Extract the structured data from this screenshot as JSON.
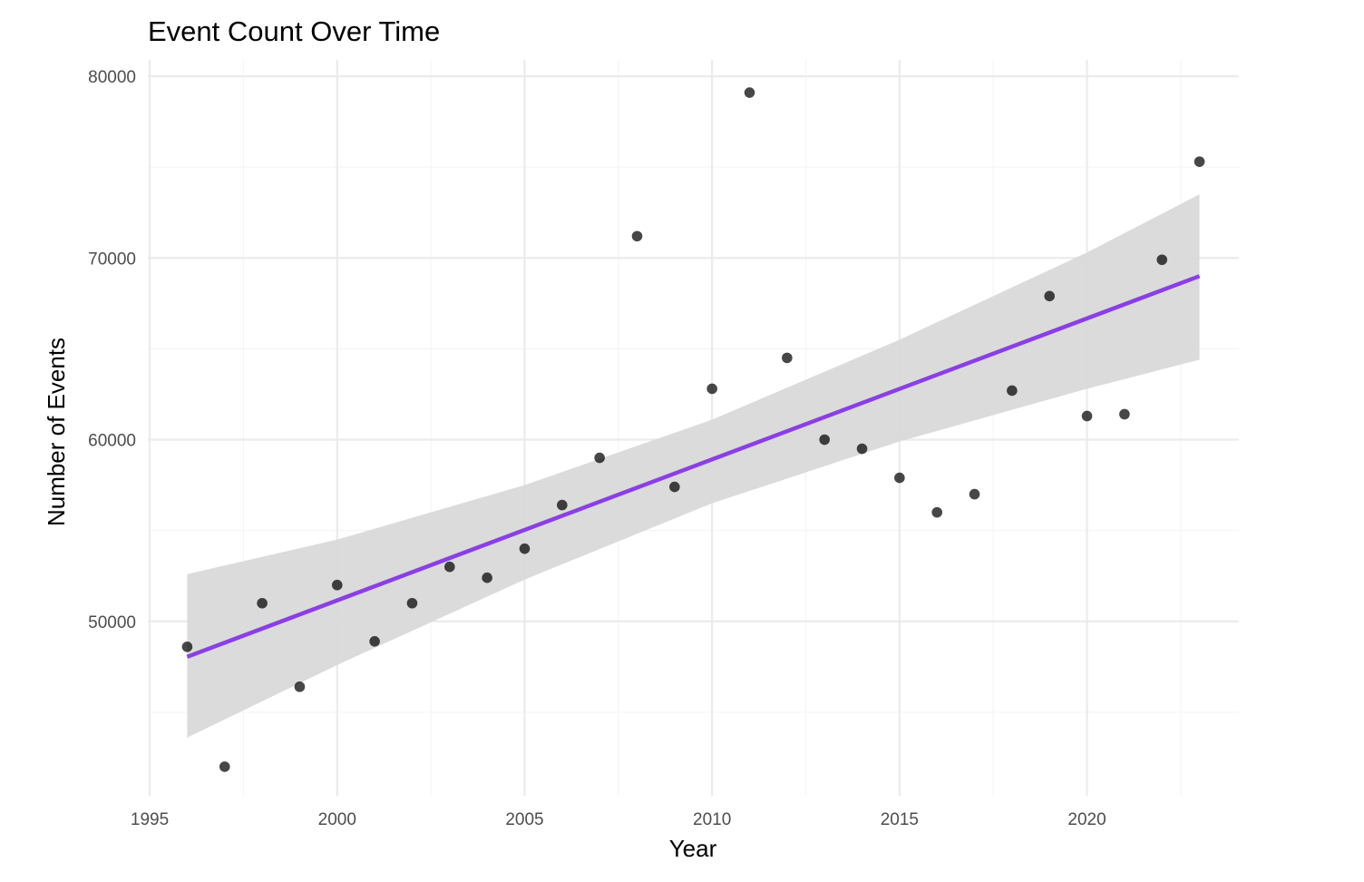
{
  "chart_data": {
    "type": "scatter",
    "title": "Event Count Over Time",
    "xlabel": "Year",
    "ylabel": "Number of Events",
    "xlim": [
      1994.95,
      2024.05
    ],
    "ylim": [
      40400,
      80900
    ],
    "x_ticks": [
      1995,
      2000,
      2005,
      2010,
      2015,
      2020
    ],
    "x_tick_labels": [
      "1995",
      "2000",
      "2005",
      "2010",
      "2015",
      "2020"
    ],
    "x_minor_ticks": [
      1997.5,
      2002.5,
      2007.5,
      2012.5,
      2017.5,
      2022.5
    ],
    "y_ticks": [
      50000,
      60000,
      70000,
      80000
    ],
    "y_tick_labels": [
      "50000",
      "60000",
      "70000",
      "80000"
    ],
    "y_minor_ticks": [
      45000,
      55000,
      65000,
      75000
    ],
    "grid": true,
    "legend": "none",
    "points": {
      "x": [
        1996,
        1997,
        1998,
        1999,
        2000,
        2001,
        2002,
        2003,
        2004,
        2005,
        2006,
        2007,
        2008,
        2009,
        2010,
        2011,
        2012,
        2013,
        2014,
        2015,
        2016,
        2017,
        2018,
        2019,
        2020,
        2021,
        2022,
        2023
      ],
      "y": [
        48600,
        42000,
        51000,
        46400,
        52000,
        48900,
        51000,
        53000,
        52400,
        54000,
        56400,
        59000,
        71200,
        57400,
        62800,
        79100,
        64500,
        60000,
        59500,
        57900,
        56000,
        57000,
        62700,
        67900,
        61300,
        61400,
        69900,
        75300
      ],
      "color": "#000000"
    },
    "trend": {
      "method": "linear",
      "x": [
        1996,
        2023
      ],
      "y": [
        48050,
        69000
      ],
      "color": "#8a3fe6"
    },
    "confidence_band": {
      "x": [
        1996,
        2000,
        2005,
        2010,
        2015,
        2020,
        2023
      ],
      "lower": [
        43600,
        47600,
        52300,
        56500,
        59900,
        62800,
        64400
      ],
      "upper": [
        52600,
        54500,
        57500,
        61100,
        65500,
        70300,
        73500
      ],
      "color": "#d9d9d9"
    },
    "colors": {
      "background": "#ffffff",
      "grid_major": "#ebebeb",
      "grid_minor": "#f5f5f5"
    }
  }
}
